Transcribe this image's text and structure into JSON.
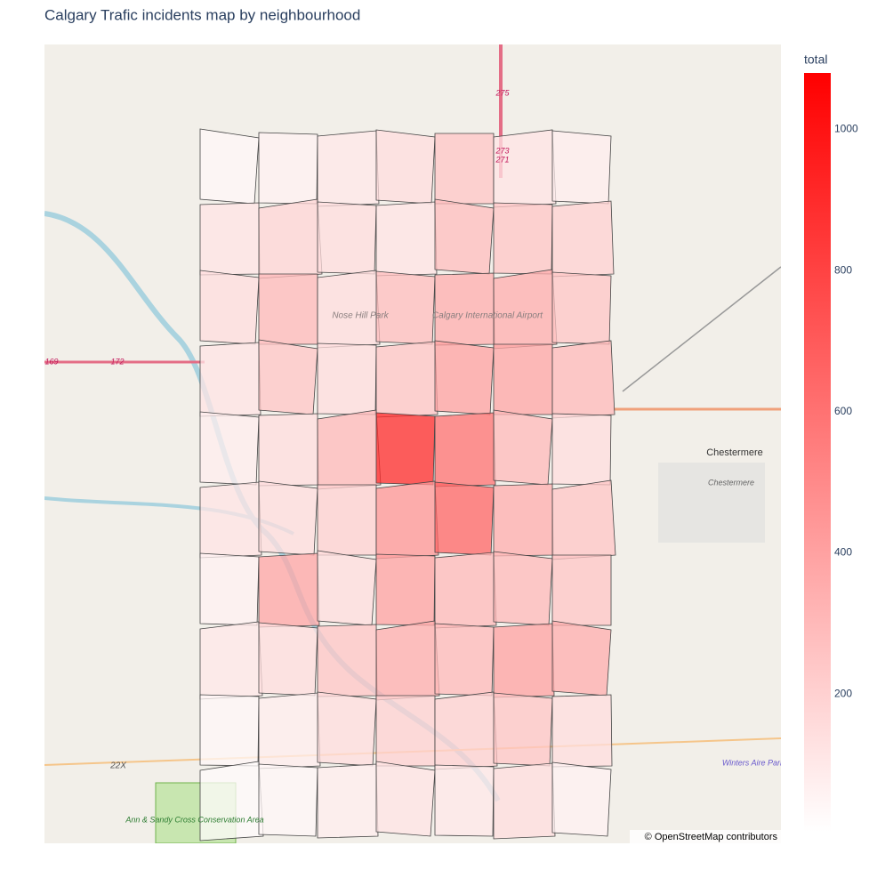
{
  "chart_data": {
    "type": "choropleth",
    "title": "Calgary Trafic incidents map by neighbourhood",
    "colorbar_title": "total",
    "colorscale": [
      "#ffffff",
      "#ff0000"
    ],
    "clim": [
      5,
      1080
    ],
    "cticks": [
      200,
      400,
      600,
      800,
      1000
    ],
    "values": [
      40,
      60,
      100,
      150,
      250,
      120,
      80,
      120,
      180,
      150,
      120,
      280,
      250,
      200,
      150,
      300,
      150,
      280,
      350,
      350,
      250,
      120,
      250,
      150,
      250,
      400,
      380,
      300,
      80,
      150,
      300,
      900,
      600,
      300,
      150,
      120,
      150,
      200,
      450,
      650,
      350,
      250,
      60,
      380,
      150,
      400,
      300,
      300,
      250,
      100,
      150,
      250,
      350,
      300,
      400,
      350,
      40,
      80,
      150,
      200,
      200,
      250,
      150,
      20,
      40,
      80,
      120,
      100,
      150,
      60
    ],
    "map_labels": [
      "Nose Hill Park",
      "Calgary International Airport",
      "Chestermere",
      "Chestermere",
      "Ann & Sandy Cross Conservation Area",
      "Winters Aire Park Airport",
      "22X",
      "275",
      "273",
      "271",
      "169",
      "172"
    ],
    "attribution": "© OpenStreetMap contributors"
  }
}
